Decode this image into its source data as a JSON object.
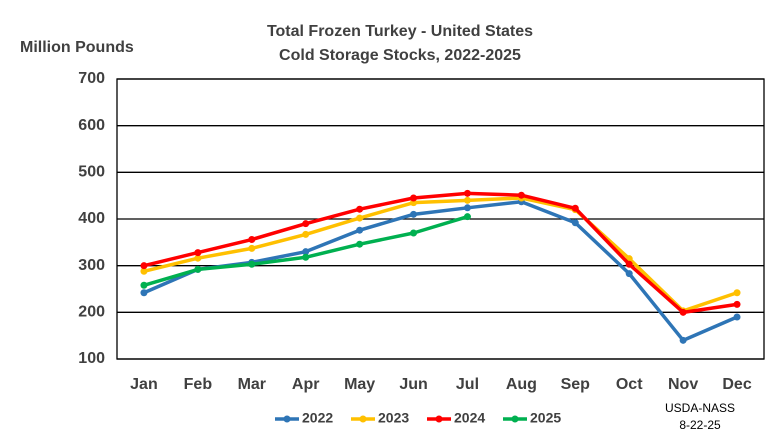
{
  "chart_data": {
    "type": "line",
    "title": [
      "Total Frozen Turkey - United States",
      "Cold Storage Stocks, 2022-2025"
    ],
    "y_label": "Million Pounds",
    "categories": [
      "Jan",
      "Feb",
      "Mar",
      "Apr",
      "May",
      "Jun",
      "Jul",
      "Aug",
      "Sep",
      "Oct",
      "Nov",
      "Dec"
    ],
    "series": [
      {
        "name": "2022",
        "color": "#2e75b6",
        "values": [
          242,
          292,
          307,
          330,
          376,
          410,
          424,
          437,
          392,
          283,
          140,
          190
        ]
      },
      {
        "name": "2023",
        "color": "#ffc000",
        "values": [
          288,
          316,
          337,
          367,
          402,
          435,
          440,
          445,
          420,
          315,
          203,
          242
        ]
      },
      {
        "name": "2024",
        "color": "#ff0000",
        "values": [
          300,
          328,
          356,
          390,
          421,
          445,
          455,
          451,
          423,
          303,
          200,
          217
        ]
      },
      {
        "name": "2025",
        "color": "#00b050",
        "values": [
          258,
          292,
          303,
          318,
          346,
          370,
          405,
          null,
          null,
          null,
          null,
          null
        ]
      }
    ],
    "ylim": [
      100,
      700
    ],
    "yticks": [
      100,
      200,
      300,
      400,
      500,
      600,
      700
    ],
    "grid": true,
    "legend": "bottom",
    "source_note": [
      "USDA-NASS",
      "8-22-25"
    ]
  }
}
